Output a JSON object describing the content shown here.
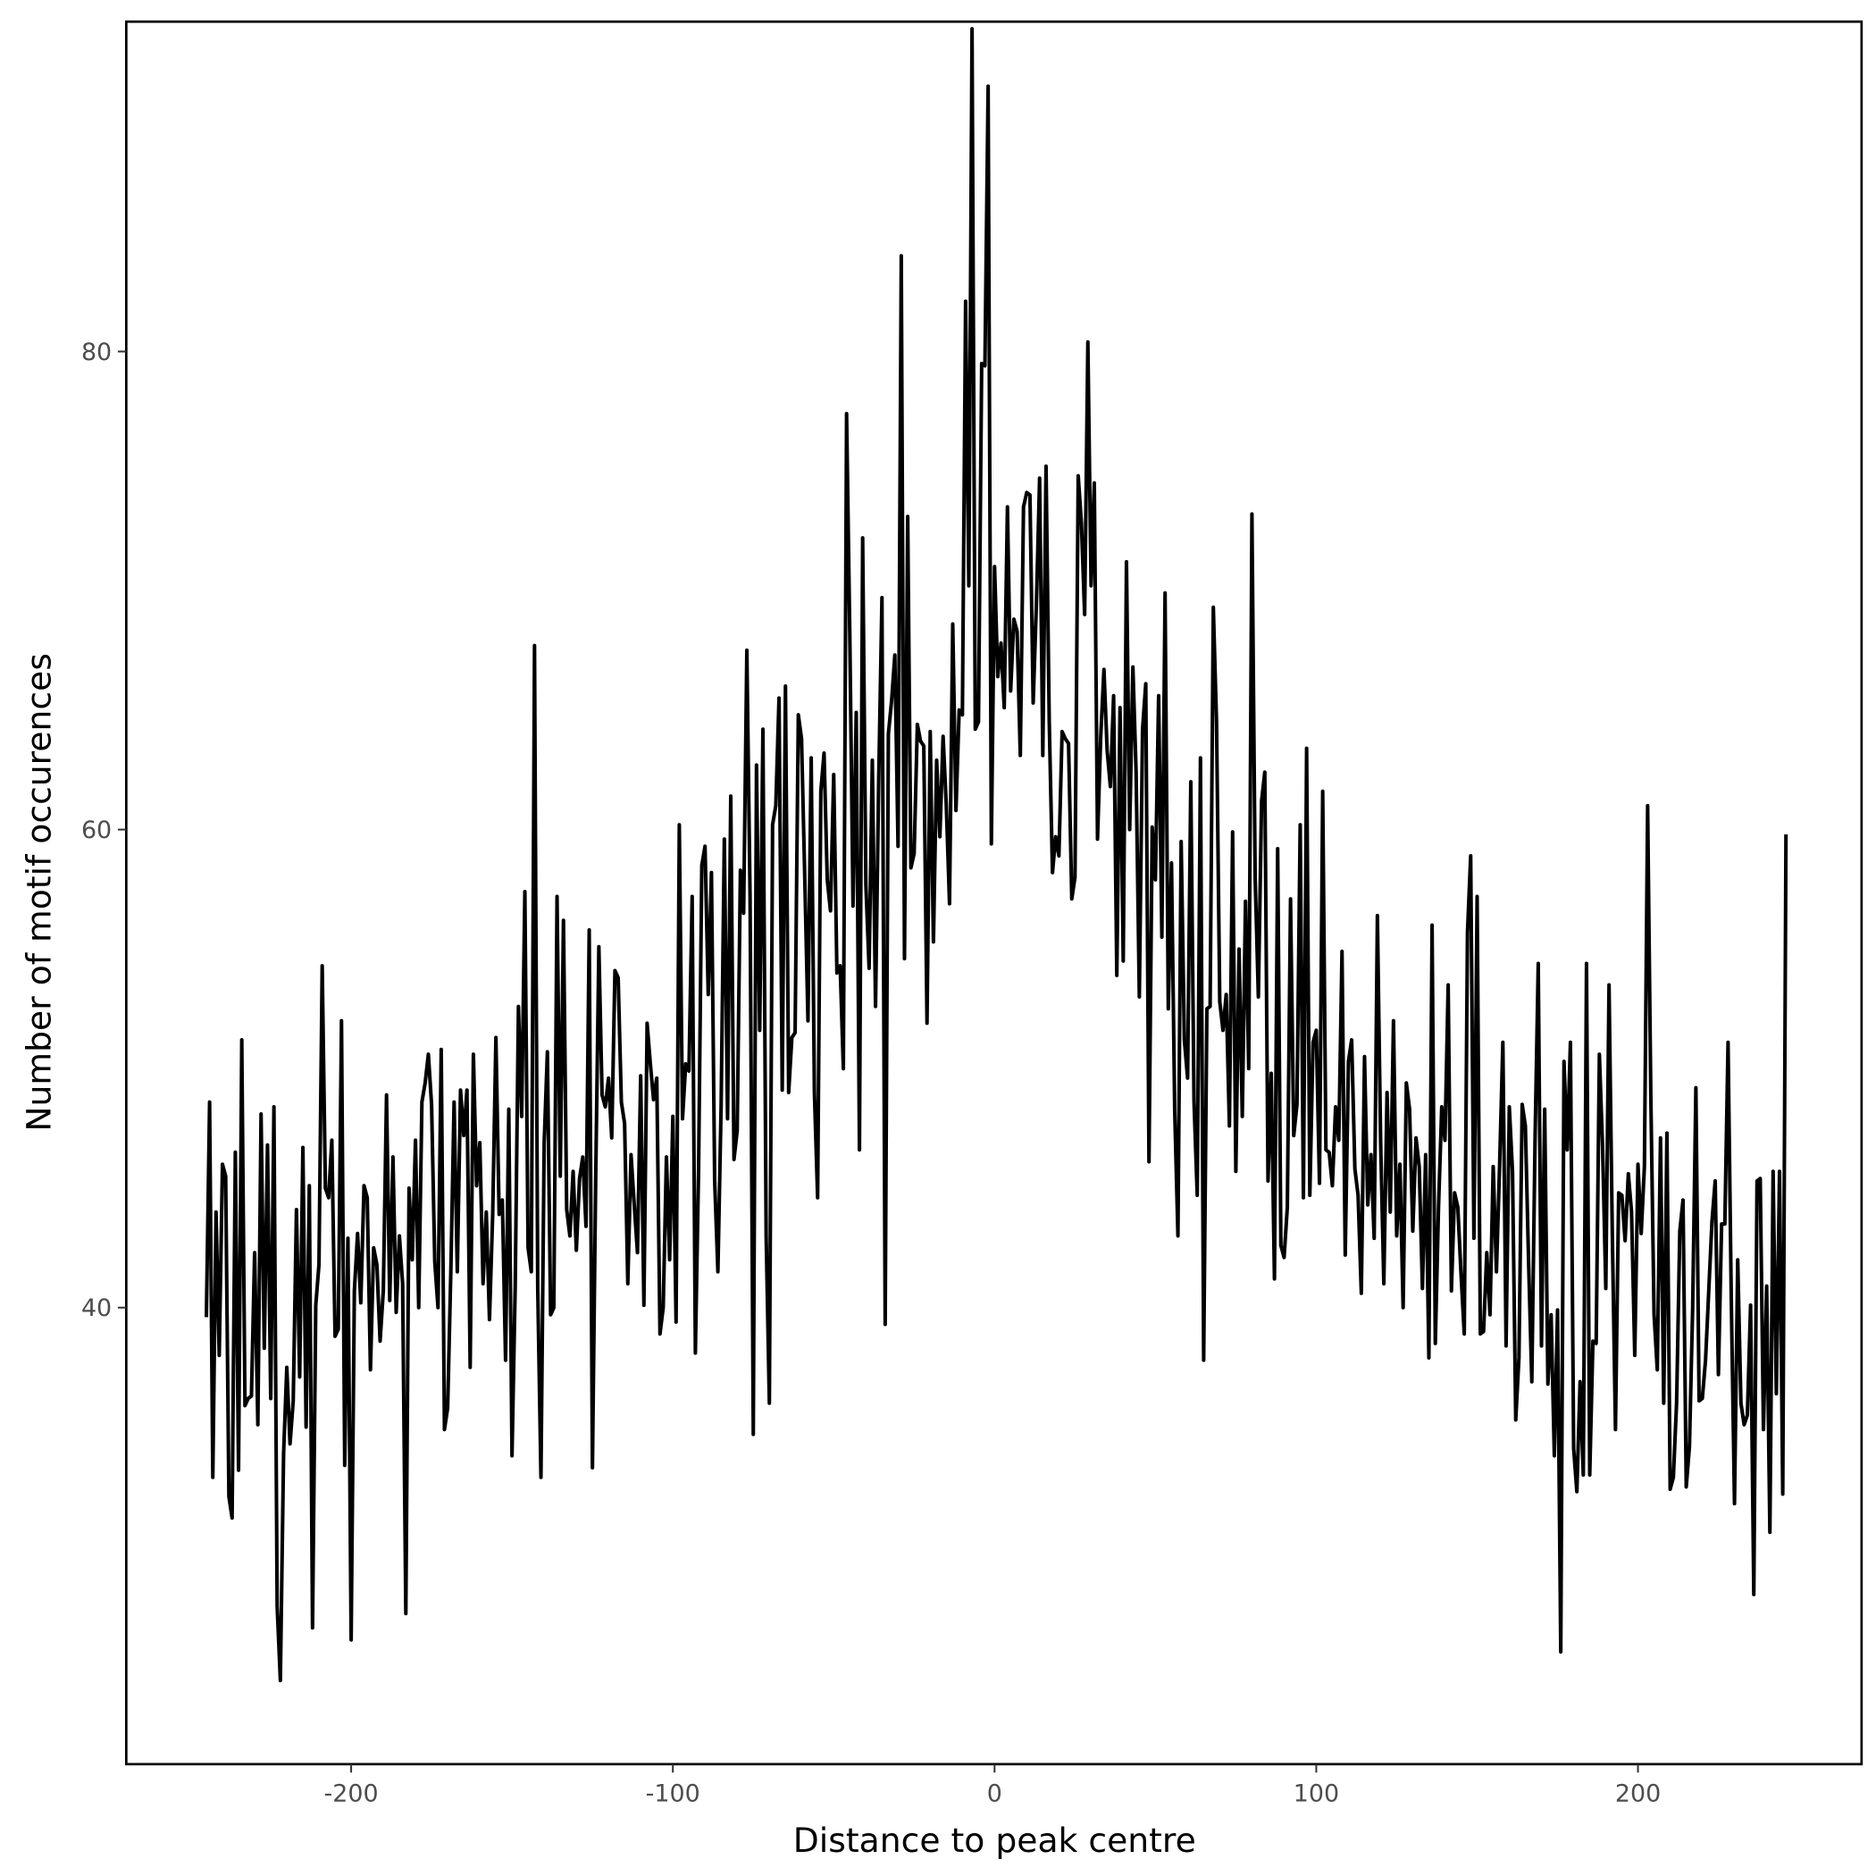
{
  "chart_data": {
    "type": "line",
    "x_label": "Distance to peak centre",
    "y_label": "Number of motif occurences",
    "xlim": [
      -269.9,
      269.5
    ],
    "ylim": [
      20.9,
      93.8
    ],
    "xticks": [
      -200,
      -100,
      0,
      100,
      200
    ],
    "yticks": [
      40,
      60,
      80
    ],
    "grid": false,
    "x": [
      -245,
      -244,
      -243,
      -242,
      -241,
      -240,
      -239,
      -238,
      -237,
      -236,
      -235,
      -234,
      -233,
      -232,
      -231,
      -230,
      -229,
      -228,
      -227,
      -226,
      -225,
      -224,
      -223,
      -222,
      -221,
      -220,
      -219,
      -218,
      -217,
      -216,
      -215,
      -214,
      -213,
      -212,
      -211,
      -210,
      -209,
      -208,
      -207,
      -206,
      -205,
      -204,
      -203,
      -202,
      -201,
      -200,
      -199,
      -198,
      -197,
      -196,
      -195,
      -194,
      -193,
      -192,
      -191,
      -190,
      -189,
      -188,
      -187,
      -186,
      -185,
      -184,
      -183,
      -182,
      -181,
      -180,
      -179,
      -178,
      -177,
      -176,
      -175,
      -174,
      -173,
      -172,
      -171,
      -170,
      -169,
      -168,
      -167,
      -166,
      -165,
      -164,
      -163,
      -162,
      -161,
      -160,
      -159,
      -158,
      -157,
      -156,
      -155,
      -154,
      -153,
      -152,
      -151,
      -150,
      -149,
      -148,
      -147,
      -146,
      -145,
      -144,
      -143,
      -142,
      -141,
      -140,
      -139,
      -138,
      -137,
      -136,
      -135,
      -134,
      -133,
      -132,
      -131,
      -130,
      -129,
      -128,
      -127,
      -126,
      -125,
      -124,
      -123,
      -122,
      -121,
      -120,
      -119,
      -118,
      -117,
      -116,
      -115,
      -114,
      -113,
      -112,
      -111,
      -110,
      -109,
      -108,
      -107,
      -106,
      -105,
      -104,
      -103,
      -102,
      -101,
      -100,
      -99,
      -98,
      -97,
      -96,
      -95,
      -94,
      -93,
      -92,
      -91,
      -90,
      -89,
      -88,
      -87,
      -86,
      -85,
      -84,
      -83,
      -82,
      -81,
      -80,
      -79,
      -78,
      -77,
      -76,
      -75,
      -74,
      -73,
      -72,
      -71,
      -70,
      -69,
      -68,
      -67,
      -66,
      -65,
      -64,
      -63,
      -62,
      -61,
      -60,
      -59,
      -58,
      -57,
      -56,
      -55,
      -54,
      -53,
      -52,
      -51,
      -50,
      -49,
      -48,
      -47,
      -46,
      -45,
      -44,
      -43,
      -42,
      -41,
      -40,
      -39,
      -38,
      -37,
      -36,
      -35,
      -34,
      -33,
      -32,
      -31,
      -30,
      -29,
      -28,
      -27,
      -26,
      -25,
      -24,
      -23,
      -22,
      -21,
      -20,
      -19,
      -18,
      -17,
      -16,
      -15,
      -14,
      -13,
      -12,
      -11,
      -10,
      -9,
      -8,
      -7,
      -6,
      -5,
      -4,
      -3,
      -2,
      -1,
      0,
      1,
      2,
      3,
      4,
      5,
      6,
      7,
      8,
      9,
      10,
      11,
      12,
      13,
      14,
      15,
      16,
      17,
      18,
      19,
      20,
      21,
      22,
      23,
      24,
      25,
      26,
      27,
      28,
      29,
      30,
      31,
      32,
      33,
      34,
      35,
      36,
      37,
      38,
      39,
      40,
      41,
      42,
      43,
      44,
      45,
      46,
      47,
      48,
      49,
      50,
      51,
      52,
      53,
      54,
      55,
      56,
      57,
      58,
      59,
      60,
      61,
      62,
      63,
      64,
      65,
      66,
      67,
      68,
      69,
      70,
      71,
      72,
      73,
      74,
      75,
      76,
      77,
      78,
      79,
      80,
      81,
      82,
      83,
      84,
      85,
      86,
      87,
      88,
      89,
      90,
      91,
      92,
      93,
      94,
      95,
      96,
      97,
      98,
      99,
      100,
      101,
      102,
      103,
      104,
      105,
      106,
      107,
      108,
      109,
      110,
      111,
      112,
      113,
      114,
      115,
      116,
      117,
      118,
      119,
      120,
      121,
      122,
      123,
      124,
      125,
      126,
      127,
      128,
      129,
      130,
      131,
      132,
      133,
      134,
      135,
      136,
      137,
      138,
      139,
      140,
      141,
      142,
      143,
      144,
      145,
      146,
      147,
      148,
      149,
      150,
      151,
      152,
      153,
      154,
      155,
      156,
      157,
      158,
      159,
      160,
      161,
      162,
      163,
      164,
      165,
      166,
      167,
      168,
      169,
      170,
      171,
      172,
      173,
      174,
      175,
      176,
      177,
      178,
      179,
      180,
      181,
      182,
      183,
      184,
      185,
      186,
      187,
      188,
      189,
      190,
      191,
      192,
      193,
      194,
      195,
      196,
      197,
      198,
      199,
      200,
      201,
      202,
      203,
      204,
      205,
      206,
      207,
      208,
      209,
      210,
      211,
      212,
      213,
      214,
      215,
      216,
      217,
      218,
      219,
      220,
      221,
      222,
      223,
      224,
      225,
      226,
      227,
      228,
      229,
      230,
      231,
      232,
      233,
      234,
      235,
      236,
      237,
      238,
      239,
      240,
      241,
      242,
      243,
      244,
      245,
      246
    ],
    "series": [
      {
        "name": "occurrences",
        "color": "#000000",
        "values": [
          39.6,
          48.6,
          32.9,
          44.0,
          38.0,
          46.0,
          45.5,
          32.1,
          31.2,
          46.5,
          33.2,
          51.2,
          35.9,
          36.2,
          36.3,
          42.3,
          35.1,
          48.1,
          38.3,
          46.8,
          36.2,
          48.4,
          27.5,
          24.4,
          33.9,
          37.5,
          34.3,
          36.1,
          44.1,
          37.1,
          46.7,
          35.0,
          45.1,
          26.6,
          40.1,
          41.8,
          54.3,
          45.0,
          44.6,
          47.0,
          38.8,
          39.1,
          52.0,
          33.4,
          42.9,
          26.1,
          40.7,
          43.1,
          40.2,
          45.1,
          44.6,
          37.4,
          42.5,
          41.8,
          38.6,
          40.7,
          48.9,
          40.3,
          46.3,
          39.8,
          43.0,
          41.0,
          27.2,
          45.0,
          42.0,
          47.0,
          40.0,
          48.6,
          49.4,
          50.6,
          48.5,
          41.9,
          40.0,
          50.8,
          34.9,
          35.8,
          41.6,
          48.6,
          41.5,
          49.1,
          47.2,
          49.1,
          37.5,
          50.6,
          45.1,
          46.9,
          41.0,
          44.0,
          39.5,
          43.9,
          51.3,
          43.9,
          44.5,
          37.8,
          48.3,
          33.8,
          40.9,
          52.6,
          48.0,
          57.4,
          42.5,
          41.5,
          67.7,
          40.8,
          32.9,
          46.9,
          50.7,
          39.7,
          40.0,
          57.2,
          45.5,
          56.2,
          44.1,
          43.0,
          45.7,
          42.4,
          45.4,
          46.3,
          43.4,
          55.8,
          33.3,
          45.2,
          55.1,
          48.9,
          48.4,
          49.6,
          47.1,
          54.1,
          53.8,
          48.6,
          47.7,
          41.0,
          46.4,
          44.3,
          42.3,
          49.7,
          40.1,
          51.9,
          50.2,
          48.7,
          49.6,
          38.9,
          40.0,
          46.3,
          42.0,
          48.0,
          39.4,
          60.2,
          47.9,
          50.2,
          49.9,
          57.2,
          38.1,
          45.8,
          58.5,
          59.3,
          53.1,
          58.2,
          45.3,
          41.5,
          48.4,
          59.6,
          47.9,
          61.4,
          46.2,
          47.4,
          58.3,
          56.5,
          67.5,
          57.2,
          34.7,
          62.7,
          51.6,
          64.2,
          43.0,
          36.0,
          60.2,
          61.0,
          65.5,
          49.1,
          66.0,
          49.0,
          51.3,
          51.5,
          64.8,
          63.8,
          58.0,
          52.0,
          63.0,
          49.0,
          44.6,
          61.6,
          63.2,
          57.9,
          56.6,
          62.3,
          54.0,
          54.3,
          50.0,
          77.4,
          68.2,
          56.8,
          64.9,
          46.6,
          72.2,
          57.7,
          54.2,
          62.9,
          52.6,
          62.2,
          69.7,
          39.3,
          64.0,
          65.4,
          67.3,
          59.3,
          84.0,
          54.6,
          73.1,
          58.4,
          59.0,
          64.4,
          63.7,
          63.5,
          51.9,
          64.1,
          55.3,
          62.9,
          59.7,
          63.9,
          61.0,
          56.9,
          68.6,
          60.8,
          65.0,
          64.8,
          82.1,
          70.2,
          93.5,
          64.2,
          64.5,
          79.5,
          79.4,
          91.1,
          59.4,
          71.0,
          66.4,
          67.8,
          65.1,
          73.5,
          65.8,
          68.8,
          68.3,
          63.1,
          73.5,
          74.1,
          74.0,
          65.3,
          69.4,
          74.7,
          63.1,
          75.2,
          64.5,
          58.2,
          59.7,
          58.9,
          64.1,
          63.8,
          63.6,
          57.1,
          58.0,
          74.8,
          72.8,
          69.0,
          80.4,
          70.2,
          74.5,
          59.6,
          63.9,
          66.7,
          63.3,
          61.8,
          65.6,
          53.9,
          65.1,
          54.5,
          71.2,
          60.0,
          66.8,
          62.4,
          53.0,
          64.2,
          66.1,
          46.1,
          60.1,
          57.9,
          65.6,
          55.5,
          69.9,
          52.5,
          58.6,
          48.2,
          43.0,
          59.5,
          51.2,
          49.6,
          62.0,
          48.6,
          44.7,
          63.0,
          37.8,
          52.5,
          52.6,
          69.3,
          64.5,
          52.8,
          51.6,
          53.1,
          47.6,
          59.9,
          45.7,
          55.0,
          48.0,
          57.0,
          50.0,
          73.2,
          58.0,
          53.0,
          61.2,
          62.4,
          45.3,
          49.8,
          41.2,
          59.2,
          42.6,
          42.1,
          44.2,
          57.1,
          47.2,
          48.5,
          60.2,
          44.6,
          63.4,
          44.7,
          51.1,
          51.6,
          45.2,
          61.6,
          46.6,
          46.5,
          45.1,
          48.4,
          47.0,
          54.9,
          42.2,
          50.3,
          51.2,
          45.8,
          44.7,
          40.6,
          50.5,
          44.3,
          46.4,
          42.9,
          56.4,
          47.0,
          41.0,
          49.0,
          44.0,
          52.0,
          43.0,
          46.0,
          40.0,
          49.4,
          48.3,
          43.2,
          47.1,
          45.9,
          40.8,
          46.4,
          37.9,
          56.0,
          38.5,
          44.2,
          48.4,
          47.0,
          53.5,
          40.7,
          44.8,
          44.2,
          41.4,
          38.9,
          55.7,
          58.9,
          42.9,
          57.2,
          38.9,
          39.0,
          42.3,
          39.7,
          45.9,
          41.5,
          46.0,
          51.1,
          38.4,
          48.4,
          45.7,
          35.3,
          37.9,
          48.5,
          47.6,
          41.9,
          36.9,
          47.0,
          54.4,
          38.4,
          48.3,
          36.8,
          39.7,
          33.8,
          39.9,
          25.6,
          50.3,
          46.6,
          51.1,
          34.1,
          32.3,
          36.9,
          33.0,
          54.4,
          33.0,
          38.6,
          38.5,
          50.6,
          46.7,
          40.8,
          53.5,
          43.3,
          34.9,
          44.8,
          44.7,
          42.8,
          45.6,
          44.0,
          38.0,
          46.0,
          43.1,
          45.9,
          61.0,
          48.8,
          39.7,
          37.4,
          47.1,
          36.0,
          47.3,
          32.4,
          32.9,
          36.0,
          43.2,
          44.5,
          32.5,
          34.2,
          40.0,
          49.2,
          36.1,
          36.2,
          37.8,
          40.7,
          43.6,
          45.3,
          37.2,
          43.5,
          43.5,
          51.1,
          40.4,
          31.8,
          42.0,
          36.0,
          35.1,
          35.5,
          40.1,
          28.0,
          45.3,
          45.4,
          34.9,
          40.9,
          30.6,
          45.7,
          36.4,
          45.7,
          32.2,
          59.8
        ]
      }
    ]
  }
}
